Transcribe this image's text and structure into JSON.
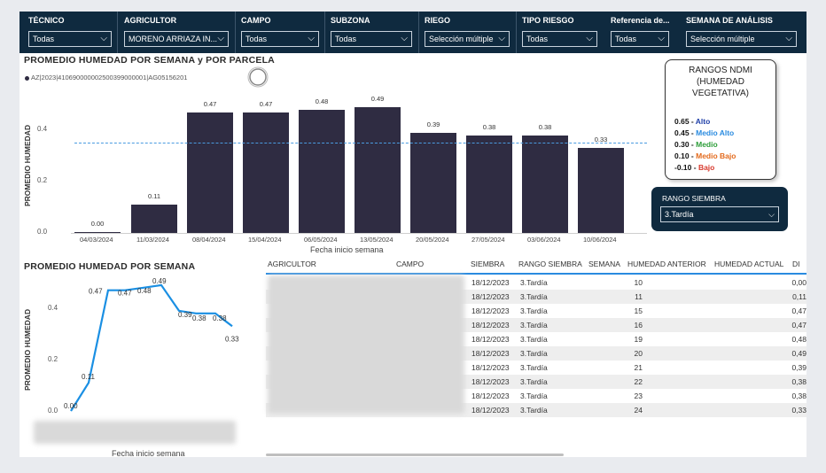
{
  "filters": [
    {
      "label": "TÉCNICO",
      "value": "Todas"
    },
    {
      "label": "AGRICULTOR",
      "value": "MORENO ARRIAZA IN..."
    },
    {
      "label": "CAMPO",
      "value": "Todas"
    },
    {
      "label": "SUBZONA",
      "value": "Todas"
    },
    {
      "label": "RIEGO",
      "value": "Selección múltiple"
    },
    {
      "label": "TIPO RIESGO",
      "value": "Todas"
    },
    {
      "label": "Referencia de...",
      "value": "Todas"
    },
    {
      "label": "SEMANA DE ANÁLISIS",
      "value": "Selección múltiple"
    }
  ],
  "top_chart": {
    "title": "PROMEDIO HUMEDAD POR SEMANA y POR PARCELA",
    "legend": "AZ|2023|410690000002500399000001|AG05156201",
    "legend_color": "#2f2c42",
    "ylabel": "PROMEDIO HUMEDAD",
    "xlabel": "Fecha inicio semana",
    "yticks": [
      "0.0",
      "0.2",
      "0.4"
    ],
    "reference_line": 0.35
  },
  "bottom_chart": {
    "title": "PROMEDIO HUMEDAD POR SEMANA",
    "ylabel": "PROMEDIO HUMEDAD",
    "xlabel": "Fecha inicio semana",
    "yticks": [
      "0.0",
      "0.2",
      "0.4"
    ],
    "line_color": "#1a8fe3"
  },
  "chart_data": [
    {
      "type": "bar",
      "categories": [
        "04/03/2024",
        "11/03/2024",
        "08/04/2024",
        "15/04/2024",
        "06/05/2024",
        "13/05/2024",
        "20/05/2024",
        "27/05/2024",
        "03/06/2024",
        "10/06/2024"
      ],
      "values": [
        0.0,
        0.11,
        0.47,
        0.47,
        0.48,
        0.49,
        0.39,
        0.38,
        0.38,
        0.33
      ],
      "labels": [
        "0.00",
        "0.11",
        "0.47",
        "0.47",
        "0.48",
        "0.49",
        "0.39",
        "0.38",
        "0.38",
        "0.33"
      ],
      "ylim": [
        0,
        0.52
      ],
      "reference_line": 0.35
    },
    {
      "type": "line",
      "values": [
        0.0,
        0.11,
        0.47,
        0.47,
        0.48,
        0.49,
        0.39,
        0.38,
        0.38,
        0.33
      ],
      "labels": [
        "0.00",
        "0.11",
        "0.47",
        "0.47",
        "0.48",
        "0.49",
        "0.39",
        "0.38",
        "0.38",
        "0.33"
      ],
      "ylim": [
        0,
        0.52
      ]
    }
  ],
  "ndmi": {
    "title_lines": [
      "RANGOS NDMI",
      "(HUMEDAD",
      "VEGETATIVA)"
    ],
    "items": [
      {
        "value": "0.65 -",
        "label": "Alto",
        "color": "#1f3fa8"
      },
      {
        "value": "0.45 -",
        "label": "Medio Alto",
        "color": "#2a8be0"
      },
      {
        "value": "0.30 -",
        "label": "Medio",
        "color": "#2e9e3a"
      },
      {
        "value": "0.10 -",
        "label": "Medio Bajo",
        "color": "#e36a1c"
      },
      {
        "value": "-0.10 -",
        "label": "Bajo",
        "color": "#d83a2e"
      }
    ]
  },
  "rango_siembra": {
    "label": "RANGO SIEMBRA",
    "value": "3.Tardía"
  },
  "table": {
    "headers": [
      "AGRICULTOR",
      "CAMPO",
      "SIEMBRA",
      "RANGO SIEMBRA",
      "SEMANA",
      "HUMEDAD ANTERIOR",
      "HUMEDAD ACTUAL",
      "DI"
    ],
    "rows": [
      {
        "siembra": "18/12/2023",
        "rango": "3.Tardía",
        "semana": "10",
        "actual": "0,00"
      },
      {
        "siembra": "18/12/2023",
        "rango": "3.Tardía",
        "semana": "11",
        "actual": "0,11"
      },
      {
        "siembra": "18/12/2023",
        "rango": "3.Tardía",
        "semana": "15",
        "actual": "0,47"
      },
      {
        "siembra": "18/12/2023",
        "rango": "3.Tardía",
        "semana": "16",
        "actual": "0,47"
      },
      {
        "siembra": "18/12/2023",
        "rango": "3.Tardía",
        "semana": "19",
        "actual": "0,48"
      },
      {
        "siembra": "18/12/2023",
        "rango": "3.Tardía",
        "semana": "20",
        "actual": "0,49"
      },
      {
        "siembra": "18/12/2023",
        "rango": "3.Tardía",
        "semana": "21",
        "actual": "0,39"
      },
      {
        "siembra": "18/12/2023",
        "rango": "3.Tardía",
        "semana": "22",
        "actual": "0,38"
      },
      {
        "siembra": "18/12/2023",
        "rango": "3.Tardía",
        "semana": "23",
        "actual": "0,38"
      },
      {
        "siembra": "18/12/2023",
        "rango": "3.Tardía",
        "semana": "24",
        "actual": "0,33"
      }
    ]
  }
}
